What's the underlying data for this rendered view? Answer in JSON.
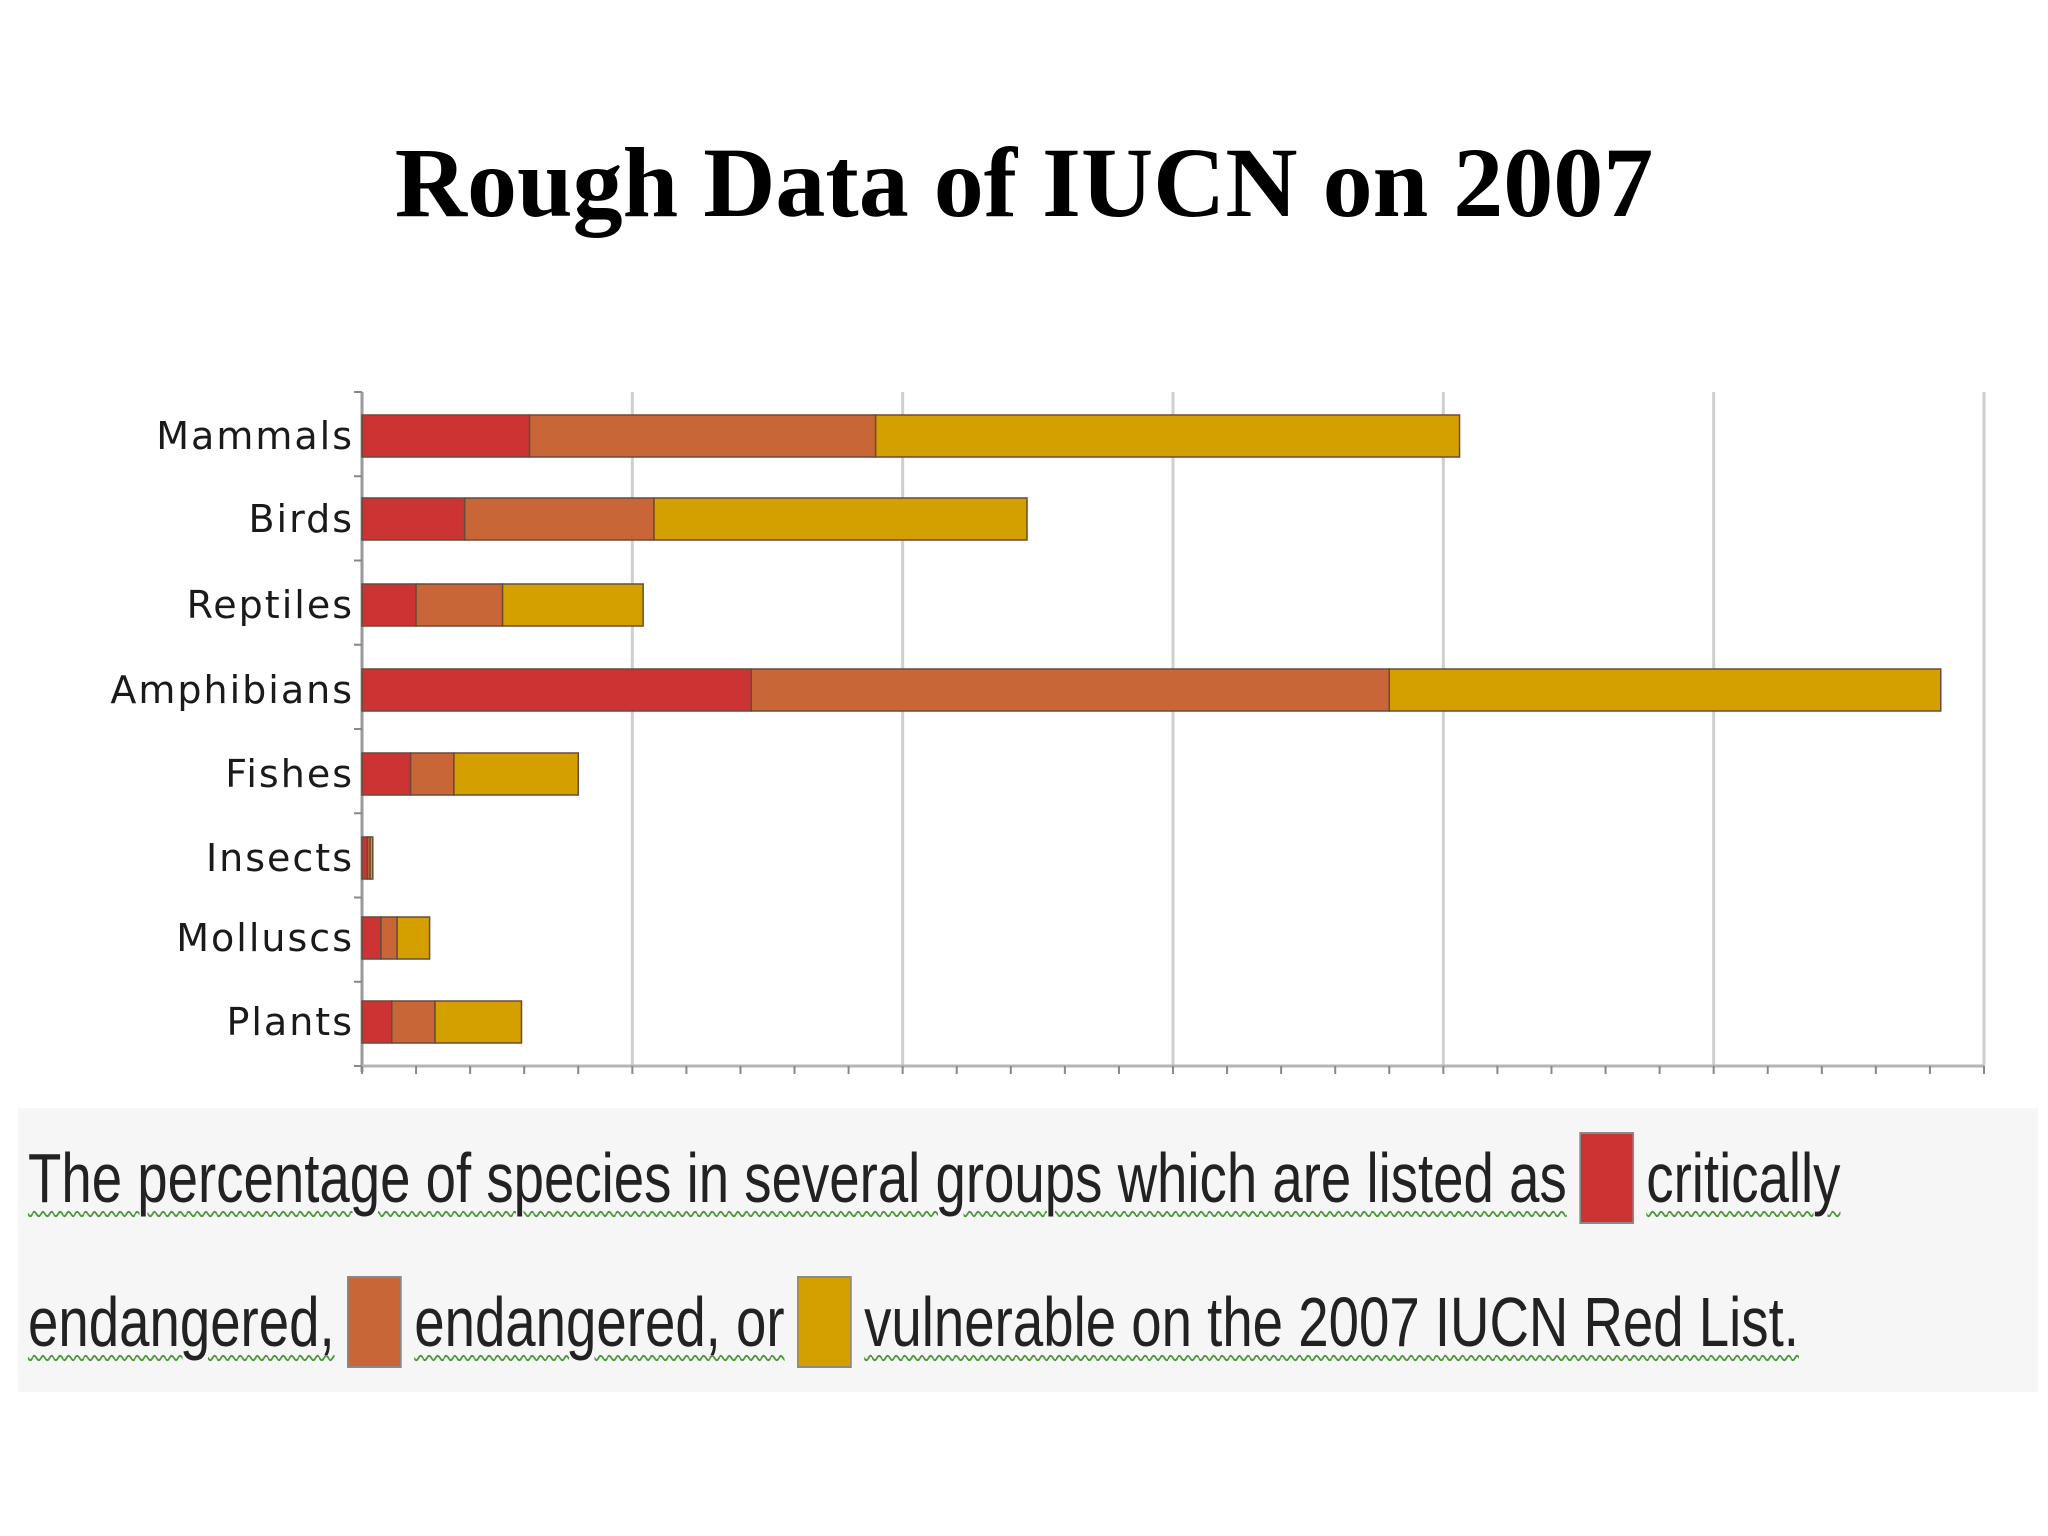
{
  "title": "Rough Data of IUCN on 2007",
  "chart_data": {
    "type": "bar",
    "orientation": "horizontal",
    "stacked": true,
    "categories": [
      "Mammals",
      "Birds",
      "Reptiles",
      "Amphibians",
      "Fishes",
      "Insects",
      "Molluscs",
      "Plants"
    ],
    "series": [
      {
        "color": "#cc3333",
        "values": [
          3.1,
          1.9,
          1.0,
          7.2,
          0.9,
          0.1,
          0.35,
          0.55
        ]
      },
      {
        "color": "#c96637",
        "values": [
          6.4,
          3.5,
          1.6,
          11.8,
          0.8,
          0.05,
          0.3,
          0.8
        ]
      },
      {
        "color": "#d4a000",
        "values": [
          10.8,
          6.9,
          2.6,
          10.2,
          2.3,
          0.05,
          0.6,
          1.6
        ]
      }
    ],
    "xlim": [
      0,
      30
    ],
    "grid": true,
    "legend": "caption-below"
  },
  "caption": {
    "line1_text": "The percentage of species in several groups which are listed as",
    "line1_tail": "critically",
    "line2_head": "endangered,",
    "line2_mid": "endangered, or",
    "line2_tail": "vulnerable on the 2007 IUCN Red List.",
    "colors": {
      "critically_endangered": "#cc3333",
      "endangered": "#c96637",
      "vulnerable": "#d4a000"
    }
  }
}
